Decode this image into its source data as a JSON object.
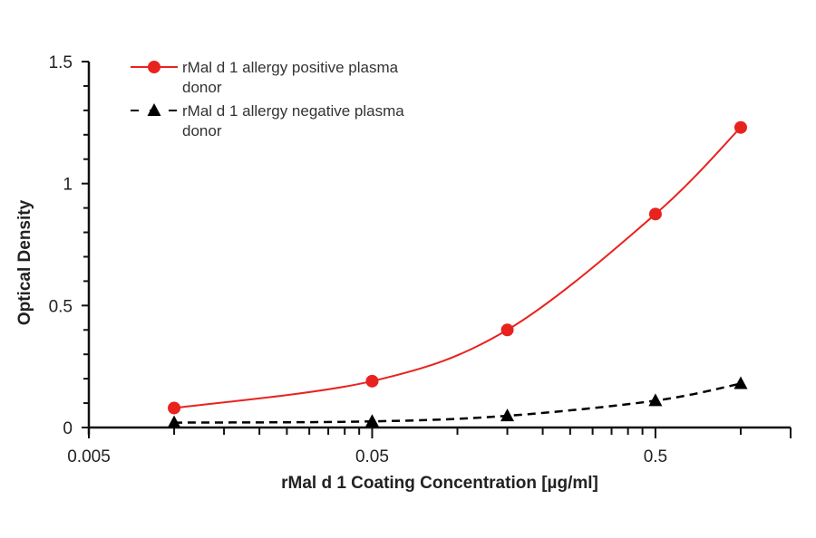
{
  "chart_data": {
    "type": "line",
    "title": "",
    "xlabel": "rMal d 1 Coating Concentration [µg/ml]",
    "ylabel": "Optical Density",
    "x_scale": "log",
    "xlim": [
      0.005,
      1.5
    ],
    "ylim": [
      0,
      1.5
    ],
    "x_ticks": [
      0.005,
      0.05,
      0.5
    ],
    "x_tick_labels": [
      "0.005",
      "0.05",
      "0.5"
    ],
    "y_ticks": [
      0,
      0.5,
      1,
      1.5
    ],
    "y_tick_labels": [
      "0",
      "0.5",
      "1",
      "1.5"
    ],
    "grid": false,
    "legend_position": "top-left",
    "x": [
      0.01,
      0.05,
      0.15,
      0.5,
      1.0
    ],
    "series": [
      {
        "name": "rMal d 1 allergy positive plasma donor",
        "legend_lines": [
          "rMal d 1 allergy positive plasma",
          "donor"
        ],
        "color": "#e8231f",
        "marker": "circle",
        "line_style": "solid",
        "values": [
          0.08,
          0.19,
          0.4,
          0.875,
          1.23
        ]
      },
      {
        "name": "rMal d 1 allergy negative plasma donor",
        "legend_lines": [
          "rMal d 1 allergy negative plasma",
          "donor"
        ],
        "color": "#000000",
        "marker": "triangle",
        "line_style": "dashed",
        "values": [
          0.02,
          0.025,
          0.048,
          0.11,
          0.18
        ]
      }
    ]
  }
}
